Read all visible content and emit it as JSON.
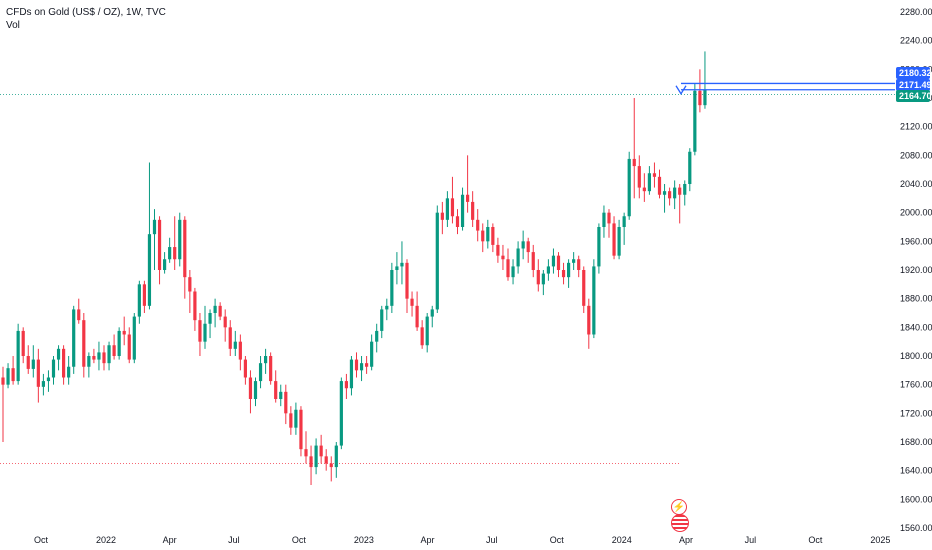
{
  "header": {
    "symbol_line": "CFDs on Gold (US$ / OZ), 1W, TVC",
    "volume_label": "Vol"
  },
  "price_tags": [
    {
      "label": "2180.32",
      "value": 2180.32,
      "color": "#2962ff"
    },
    {
      "label": "2171.49",
      "value": 2171.49,
      "color": "#2962ff"
    },
    {
      "label": "2164.70",
      "value": 2164.7,
      "color": "#089981"
    }
  ],
  "icons": {
    "lightning": "lightning-icon",
    "flag": "us-flag-icon"
  },
  "chart_data": {
    "type": "candlestick",
    "title": "",
    "interval": "1W",
    "y_axis": {
      "ylim": [
        1552,
        2292
      ],
      "ticks": [
        "2280.00",
        "2240.00",
        "2200.00",
        "2160.00",
        "2120.00",
        "2080.00",
        "2040.00",
        "2000.00",
        "1960.00",
        "1920.00",
        "1880.00",
        "1840.00",
        "1800.00",
        "1760.00",
        "1720.00",
        "1680.00",
        "1640.00",
        "1600.00",
        "1560.00"
      ]
    },
    "x_axis": {
      "ticks": [
        {
          "label": "Oct",
          "date": "2021-10-01"
        },
        {
          "label": "2022",
          "date": "2022-01-01"
        },
        {
          "label": "Apr",
          "date": "2022-04-01"
        },
        {
          "label": "Jul",
          "date": "2022-07-01"
        },
        {
          "label": "Oct",
          "date": "2022-10-01"
        },
        {
          "label": "2023",
          "date": "2023-01-01"
        },
        {
          "label": "Apr",
          "date": "2023-04-01"
        },
        {
          "label": "Jul",
          "date": "2023-07-01"
        },
        {
          "label": "Oct",
          "date": "2023-10-01"
        },
        {
          "label": "2024",
          "date": "2024-01-01"
        },
        {
          "label": "Apr",
          "date": "2024-04-01"
        },
        {
          "label": "Jul",
          "date": "2024-07-01"
        },
        {
          "label": "Oct",
          "date": "2024-10-01"
        },
        {
          "label": "2025",
          "date": "2025-01-01"
        }
      ]
    },
    "colors": {
      "up": "#089981",
      "down": "#f23645"
    },
    "reference_lines": [
      {
        "value": 2164.7,
        "color": "#089981",
        "style": "dotted"
      },
      {
        "value": 1650,
        "color": "#f23645",
        "style": "dotted"
      }
    ],
    "candles": [
      [
        1770,
        1785,
        1680,
        1760
      ],
      [
        1760,
        1790,
        1755,
        1783
      ],
      [
        1783,
        1800,
        1760,
        1765
      ],
      [
        1765,
        1845,
        1760,
        1835
      ],
      [
        1835,
        1840,
        1790,
        1800
      ],
      [
        1800,
        1815,
        1775,
        1782
      ],
      [
        1782,
        1815,
        1770,
        1795
      ],
      [
        1795,
        1810,
        1735,
        1757
      ],
      [
        1757,
        1775,
        1745,
        1765
      ],
      [
        1765,
        1780,
        1750,
        1770
      ],
      [
        1770,
        1800,
        1760,
        1795
      ],
      [
        1795,
        1815,
        1780,
        1810
      ],
      [
        1810,
        1815,
        1760,
        1770
      ],
      [
        1770,
        1800,
        1760,
        1785
      ],
      [
        1785,
        1870,
        1775,
        1865
      ],
      [
        1865,
        1880,
        1845,
        1850
      ],
      [
        1850,
        1860,
        1770,
        1785
      ],
      [
        1785,
        1805,
        1770,
        1800
      ],
      [
        1800,
        1810,
        1790,
        1795
      ],
      [
        1795,
        1820,
        1780,
        1805
      ],
      [
        1805,
        1815,
        1780,
        1790
      ],
      [
        1790,
        1820,
        1780,
        1815
      ],
      [
        1815,
        1830,
        1795,
        1800
      ],
      [
        1800,
        1840,
        1795,
        1835
      ],
      [
        1835,
        1855,
        1815,
        1830
      ],
      [
        1830,
        1840,
        1790,
        1795
      ],
      [
        1795,
        1860,
        1790,
        1855
      ],
      [
        1855,
        1905,
        1845,
        1900
      ],
      [
        1900,
        1905,
        1860,
        1870
      ],
      [
        1870,
        2070,
        1865,
        1970
      ],
      [
        1970,
        2005,
        1920,
        1990
      ],
      [
        1990,
        1995,
        1900,
        1920
      ],
      [
        1920,
        1945,
        1915,
        1935
      ],
      [
        1935,
        1965,
        1930,
        1952
      ],
      [
        1952,
        1995,
        1920,
        1935
      ],
      [
        1935,
        2000,
        1925,
        1990
      ],
      [
        1990,
        1995,
        1880,
        1910
      ],
      [
        1910,
        1920,
        1860,
        1890
      ],
      [
        1890,
        1895,
        1835,
        1850
      ],
      [
        1850,
        1860,
        1800,
        1820
      ],
      [
        1820,
        1870,
        1810,
        1845
      ],
      [
        1845,
        1865,
        1825,
        1860
      ],
      [
        1860,
        1880,
        1840,
        1870
      ],
      [
        1870,
        1875,
        1850,
        1855
      ],
      [
        1855,
        1865,
        1820,
        1840
      ],
      [
        1840,
        1850,
        1800,
        1810
      ],
      [
        1810,
        1835,
        1800,
        1820
      ],
      [
        1820,
        1830,
        1780,
        1795
      ],
      [
        1795,
        1800,
        1760,
        1770
      ],
      [
        1770,
        1780,
        1720,
        1740
      ],
      [
        1740,
        1770,
        1730,
        1765
      ],
      [
        1765,
        1800,
        1755,
        1790
      ],
      [
        1790,
        1810,
        1775,
        1800
      ],
      [
        1800,
        1805,
        1760,
        1765
      ],
      [
        1765,
        1780,
        1735,
        1740
      ],
      [
        1740,
        1760,
        1730,
        1750
      ],
      [
        1750,
        1760,
        1705,
        1720
      ],
      [
        1720,
        1730,
        1690,
        1700
      ],
      [
        1700,
        1735,
        1690,
        1725
      ],
      [
        1725,
        1730,
        1660,
        1670
      ],
      [
        1670,
        1695,
        1650,
        1660
      ],
      [
        1660,
        1675,
        1620,
        1645
      ],
      [
        1645,
        1685,
        1635,
        1675
      ],
      [
        1675,
        1690,
        1650,
        1660
      ],
      [
        1660,
        1670,
        1640,
        1650
      ],
      [
        1650,
        1660,
        1625,
        1645
      ],
      [
        1645,
        1680,
        1630,
        1675
      ],
      [
        1675,
        1770,
        1670,
        1765
      ],
      [
        1765,
        1775,
        1740,
        1755
      ],
      [
        1755,
        1800,
        1745,
        1795
      ],
      [
        1795,
        1805,
        1770,
        1780
      ],
      [
        1780,
        1800,
        1765,
        1790
      ],
      [
        1790,
        1800,
        1775,
        1785
      ],
      [
        1785,
        1830,
        1780,
        1820
      ],
      [
        1820,
        1845,
        1805,
        1835
      ],
      [
        1835,
        1870,
        1825,
        1865
      ],
      [
        1865,
        1880,
        1850,
        1870
      ],
      [
        1870,
        1930,
        1860,
        1920
      ],
      [
        1920,
        1945,
        1900,
        1925
      ],
      [
        1925,
        1960,
        1900,
        1930
      ],
      [
        1930,
        1935,
        1860,
        1880
      ],
      [
        1880,
        1890,
        1855,
        1870
      ],
      [
        1870,
        1890,
        1835,
        1840
      ],
      [
        1840,
        1850,
        1810,
        1815
      ],
      [
        1815,
        1860,
        1805,
        1855
      ],
      [
        1855,
        1870,
        1840,
        1865
      ],
      [
        1865,
        2010,
        1860,
        2000
      ],
      [
        2000,
        2015,
        1970,
        1990
      ],
      [
        1990,
        2030,
        1980,
        2020
      ],
      [
        2020,
        2050,
        1985,
        1995
      ],
      [
        1995,
        2005,
        1970,
        1980
      ],
      [
        1980,
        2035,
        1975,
        2025
      ],
      [
        2025,
        2080,
        2000,
        2015
      ],
      [
        2015,
        2030,
        1980,
        1990
      ],
      [
        1990,
        2005,
        1960,
        1975
      ],
      [
        1975,
        1985,
        1945,
        1960
      ],
      [
        1960,
        1990,
        1950,
        1980
      ],
      [
        1980,
        1985,
        1945,
        1955
      ],
      [
        1955,
        1965,
        1930,
        1940
      ],
      [
        1940,
        1955,
        1920,
        1935
      ],
      [
        1935,
        1950,
        1905,
        1910
      ],
      [
        1910,
        1935,
        1900,
        1925
      ],
      [
        1925,
        1960,
        1915,
        1950
      ],
      [
        1950,
        1975,
        1935,
        1960
      ],
      [
        1960,
        1965,
        1930,
        1945
      ],
      [
        1945,
        1955,
        1910,
        1920
      ],
      [
        1920,
        1935,
        1890,
        1900
      ],
      [
        1900,
        1920,
        1885,
        1915
      ],
      [
        1915,
        1935,
        1905,
        1925
      ],
      [
        1925,
        1950,
        1915,
        1940
      ],
      [
        1940,
        1945,
        1910,
        1920
      ],
      [
        1920,
        1930,
        1900,
        1910
      ],
      [
        1910,
        1935,
        1895,
        1930
      ],
      [
        1930,
        1945,
        1920,
        1935
      ],
      [
        1935,
        1940,
        1910,
        1920
      ],
      [
        1920,
        1925,
        1860,
        1870
      ],
      [
        1870,
        1880,
        1810,
        1830
      ],
      [
        1830,
        1935,
        1825,
        1925
      ],
      [
        1925,
        1985,
        1915,
        1980
      ],
      [
        1980,
        2010,
        1965,
        2000
      ],
      [
        2000,
        2005,
        1965,
        1985
      ],
      [
        1985,
        1995,
        1935,
        1940
      ],
      [
        1940,
        1990,
        1935,
        1980
      ],
      [
        1980,
        2000,
        1955,
        1995
      ],
      [
        1995,
        2085,
        1990,
        2075
      ],
      [
        2075,
        2160,
        2020,
        2065
      ],
      [
        2065,
        2080,
        2020,
        2035
      ],
      [
        2035,
        2055,
        2015,
        2030
      ],
      [
        2030,
        2065,
        2025,
        2055
      ],
      [
        2055,
        2070,
        2035,
        2050
      ],
      [
        2050,
        2060,
        2020,
        2025
      ],
      [
        2025,
        2040,
        2000,
        2030
      ],
      [
        2030,
        2035,
        2010,
        2020
      ],
      [
        2020,
        2045,
        2005,
        2035
      ],
      [
        2035,
        2040,
        1985,
        2025
      ],
      [
        2025,
        2045,
        2010,
        2040
      ],
      [
        2040,
        2090,
        2030,
        2085
      ],
      [
        2085,
        2180,
        2080,
        2170
      ],
      [
        2170,
        2200,
        2140,
        2150
      ],
      [
        2150,
        2225,
        2145,
        2172
      ]
    ]
  }
}
